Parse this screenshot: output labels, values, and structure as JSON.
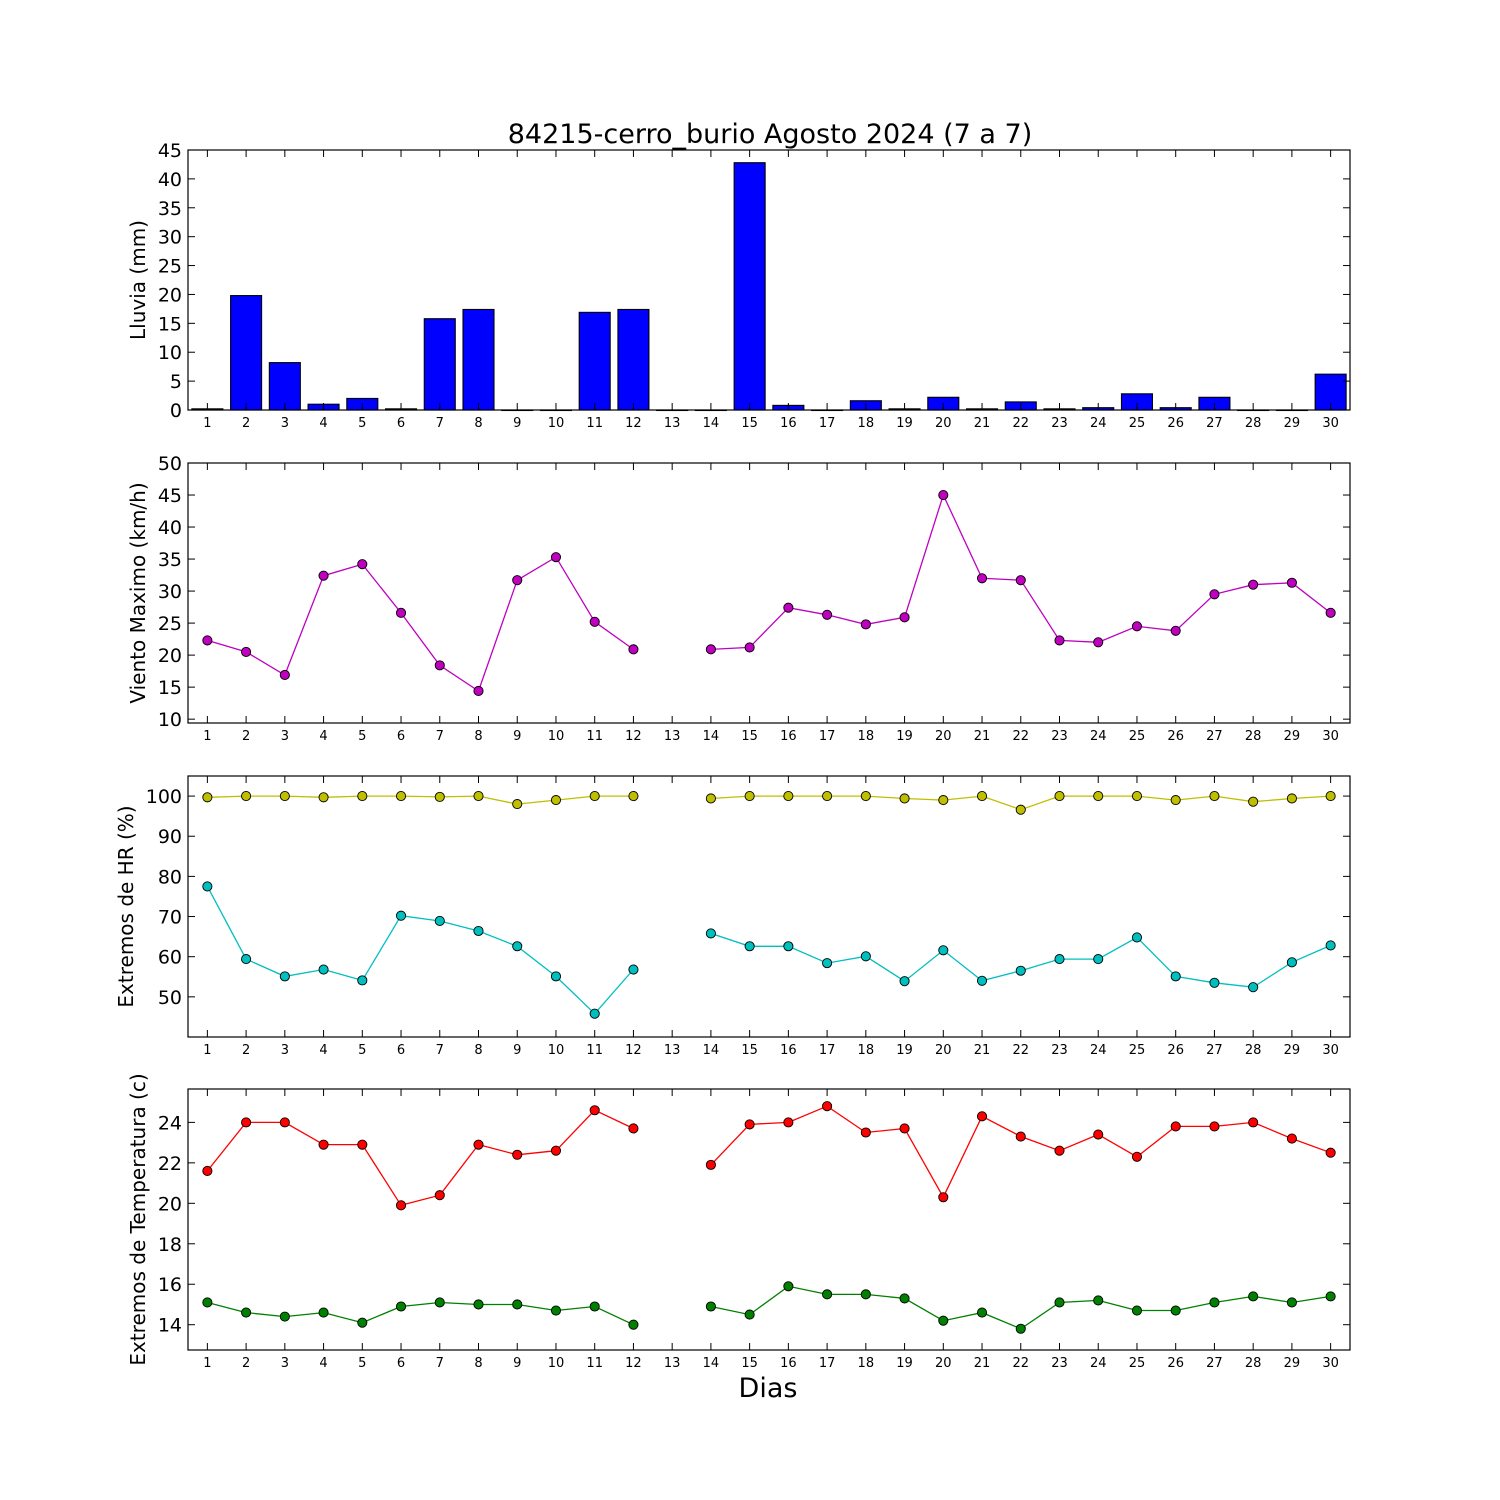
{
  "figure": {
    "title": "84215-cerro_burio Agosto 2024  (7 a 7)",
    "xlabel": "Dias"
  },
  "chart_data": [
    {
      "type": "bar",
      "ylabel": "Lluvia (mm)",
      "ylim": [
        0,
        45
      ],
      "yticks": [
        0,
        5,
        10,
        15,
        20,
        25,
        30,
        35,
        40,
        45
      ],
      "x": [
        1,
        2,
        3,
        4,
        5,
        6,
        7,
        8,
        9,
        10,
        11,
        12,
        13,
        14,
        15,
        16,
        17,
        18,
        19,
        20,
        21,
        22,
        23,
        24,
        25,
        26,
        27,
        28,
        29,
        30
      ],
      "series": [
        {
          "color": "#0000ff",
          "values": [
            0.2,
            19.8,
            8.2,
            1.0,
            2.0,
            0.2,
            15.8,
            17.4,
            0,
            0,
            16.9,
            17.4,
            0,
            0,
            42.8,
            0.8,
            0,
            1.6,
            0.2,
            2.2,
            0.2,
            1.4,
            0.2,
            0.4,
            2.8,
            0.4,
            2.2,
            0,
            0,
            6.2
          ]
        }
      ]
    },
    {
      "type": "line",
      "ylabel": "Viento Maximo (km/h)",
      "ylim": [
        9.4,
        50
      ],
      "yticks": [
        10,
        15,
        20,
        25,
        30,
        35,
        40,
        45,
        50
      ],
      "x": [
        1,
        2,
        3,
        4,
        5,
        6,
        7,
        8,
        9,
        10,
        11,
        12,
        13,
        14,
        15,
        16,
        17,
        18,
        19,
        20,
        21,
        22,
        23,
        24,
        25,
        26,
        27,
        28,
        29,
        30
      ],
      "series": [
        {
          "color": "#bf00bf",
          "values": [
            22.3,
            20.5,
            16.9,
            32.4,
            34.2,
            26.6,
            18.4,
            14.4,
            31.7,
            35.3,
            25.2,
            20.9,
            null,
            20.9,
            21.2,
            27.4,
            26.3,
            24.8,
            25.9,
            45.0,
            32.0,
            31.7,
            22.3,
            22.0,
            24.5,
            23.8,
            29.5,
            31.0,
            31.3,
            26.6
          ]
        }
      ]
    },
    {
      "type": "line",
      "ylabel": "Extremos de HR (%)",
      "ylim": [
        40,
        105
      ],
      "yticks": [
        50,
        60,
        70,
        80,
        90,
        100
      ],
      "x": [
        1,
        2,
        3,
        4,
        5,
        6,
        7,
        8,
        9,
        10,
        11,
        12,
        13,
        14,
        15,
        16,
        17,
        18,
        19,
        20,
        21,
        22,
        23,
        24,
        25,
        26,
        27,
        28,
        29,
        30
      ],
      "series": [
        {
          "color": "#bfbf00",
          "values": [
            99.7,
            100,
            100,
            99.7,
            100,
            100,
            99.8,
            100,
            98.0,
            99.0,
            100,
            100,
            null,
            99.4,
            100,
            100,
            100,
            100,
            99.4,
            99.0,
            100,
            96.6,
            100,
            100,
            100,
            99.0,
            100,
            98.6,
            99.4,
            100
          ]
        },
        {
          "color": "#00bfbf",
          "values": [
            77.5,
            59.4,
            55.1,
            56.8,
            54.1,
            70.2,
            68.9,
            66.4,
            62.6,
            55.1,
            45.8,
            56.8,
            null,
            65.8,
            62.6,
            62.6,
            58.4,
            60.1,
            53.9,
            61.6,
            54.0,
            56.5,
            59.4,
            59.4,
            64.8,
            55.1,
            53.5,
            52.4,
            58.6,
            62.8
          ]
        }
      ]
    },
    {
      "type": "line",
      "ylabel": "Extremos de Temperatura (c)",
      "ylim": [
        12.75,
        25.65
      ],
      "yticks": [
        14,
        16,
        18,
        20,
        22,
        24
      ],
      "x": [
        1,
        2,
        3,
        4,
        5,
        6,
        7,
        8,
        9,
        10,
        11,
        12,
        13,
        14,
        15,
        16,
        17,
        18,
        19,
        20,
        21,
        22,
        23,
        24,
        25,
        26,
        27,
        28,
        29,
        30
      ],
      "series": [
        {
          "color": "#ff0000",
          "values": [
            21.6,
            24.0,
            24.0,
            22.9,
            22.9,
            19.9,
            20.4,
            22.9,
            22.4,
            22.6,
            24.6,
            23.7,
            null,
            21.9,
            23.9,
            24.0,
            24.8,
            23.5,
            23.7,
            20.3,
            24.3,
            23.3,
            22.6,
            23.4,
            22.3,
            23.8,
            23.8,
            24.0,
            23.2,
            22.5
          ]
        },
        {
          "color": "#008000",
          "values": [
            15.1,
            14.6,
            14.4,
            14.6,
            14.1,
            14.9,
            15.1,
            15.0,
            15.0,
            14.7,
            14.9,
            14.0,
            null,
            14.9,
            14.5,
            15.9,
            15.5,
            15.5,
            15.3,
            14.2,
            14.6,
            13.8,
            15.1,
            15.2,
            14.7,
            14.7,
            15.1,
            15.4,
            15.1,
            15.4
          ]
        }
      ]
    }
  ]
}
